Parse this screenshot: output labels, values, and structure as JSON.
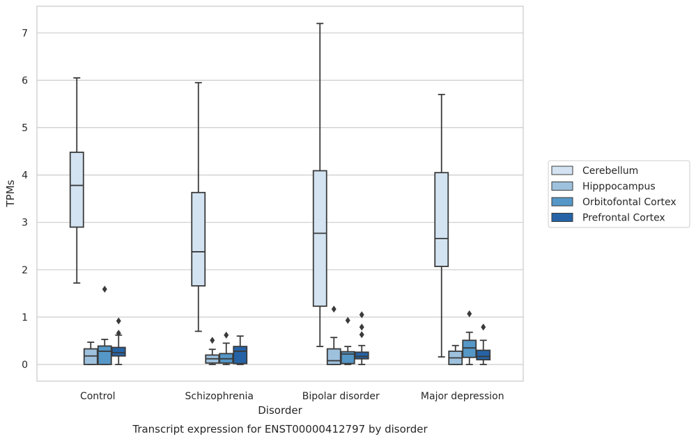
{
  "chart_data": {
    "type": "boxplot",
    "title": "",
    "caption": "Transcript expression for ENST00000412797 by disorder",
    "xlabel": "Disorder",
    "ylabel": "TPMs",
    "ylim": [
      -0.35,
      7.55
    ],
    "yticks": [
      0,
      1,
      2,
      3,
      4,
      5,
      6,
      7
    ],
    "grid": "horizontal",
    "legend_position": "right",
    "categories": [
      "Control",
      "Schizophrenia",
      "Bipolar disorder",
      "Major depression"
    ],
    "series": [
      {
        "name": "Cerebellum",
        "color": "#d3e3f2",
        "boxes": [
          {
            "whisker_low": 1.72,
            "q1": 2.9,
            "median": 3.78,
            "q3": 4.48,
            "whisker_high": 6.05,
            "outliers": []
          },
          {
            "whisker_low": 0.7,
            "q1": 1.66,
            "median": 2.38,
            "q3": 3.63,
            "whisker_high": 5.95,
            "outliers": []
          },
          {
            "whisker_low": 0.38,
            "q1": 1.23,
            "median": 2.77,
            "q3": 4.09,
            "whisker_high": 7.2,
            "outliers": []
          },
          {
            "whisker_low": 0.16,
            "q1": 2.07,
            "median": 2.66,
            "q3": 4.05,
            "whisker_high": 5.7,
            "outliers": []
          }
        ]
      },
      {
        "name": "Hipppocampus",
        "color": "#9ec1dd",
        "boxes": [
          {
            "whisker_low": 0.0,
            "q1": 0.0,
            "median": 0.18,
            "q3": 0.33,
            "whisker_high": 0.47,
            "outliers": []
          },
          {
            "whisker_low": 0.0,
            "q1": 0.03,
            "median": 0.12,
            "q3": 0.2,
            "whisker_high": 0.32,
            "outliers": [
              0.51
            ]
          },
          {
            "whisker_low": 0.0,
            "q1": 0.0,
            "median": 0.08,
            "q3": 0.33,
            "whisker_high": 0.57,
            "outliers": [
              1.17
            ]
          },
          {
            "whisker_low": 0.0,
            "q1": 0.0,
            "median": 0.14,
            "q3": 0.28,
            "whisker_high": 0.4,
            "outliers": []
          }
        ]
      },
      {
        "name": "Orbitofontal Cortex",
        "color": "#5597c6",
        "boxes": [
          {
            "whisker_low": 0.0,
            "q1": 0.0,
            "median": 0.28,
            "q3": 0.39,
            "whisker_high": 0.53,
            "outliers": [
              1.59
            ]
          },
          {
            "whisker_low": 0.0,
            "q1": 0.03,
            "median": 0.12,
            "q3": 0.23,
            "whisker_high": 0.45,
            "outliers": [
              0.62
            ]
          },
          {
            "whisker_low": 0.0,
            "q1": 0.02,
            "median": 0.22,
            "q3": 0.27,
            "whisker_high": 0.38,
            "outliers": [
              0.93
            ]
          },
          {
            "whisker_low": 0.0,
            "q1": 0.15,
            "median": 0.35,
            "q3": 0.51,
            "whisker_high": 0.68,
            "outliers": [
              1.07
            ]
          }
        ]
      },
      {
        "name": "Prefrontal Cortex",
        "color": "#2563a6",
        "boxes": [
          {
            "whisker_low": 0.0,
            "q1": 0.18,
            "median": 0.25,
            "q3": 0.36,
            "whisker_high": 0.62,
            "outliers": [
              0.66,
              0.92
            ]
          },
          {
            "whisker_low": 0.0,
            "q1": 0.02,
            "median": 0.28,
            "q3": 0.38,
            "whisker_high": 0.6,
            "outliers": []
          },
          {
            "whisker_low": 0.0,
            "q1": 0.12,
            "median": 0.17,
            "q3": 0.26,
            "whisker_high": 0.4,
            "outliers": [
              0.63,
              0.79,
              1.05
            ]
          },
          {
            "whisker_low": 0.0,
            "q1": 0.1,
            "median": 0.17,
            "q3": 0.3,
            "whisker_high": 0.51,
            "outliers": [
              0.79
            ]
          }
        ]
      }
    ]
  }
}
